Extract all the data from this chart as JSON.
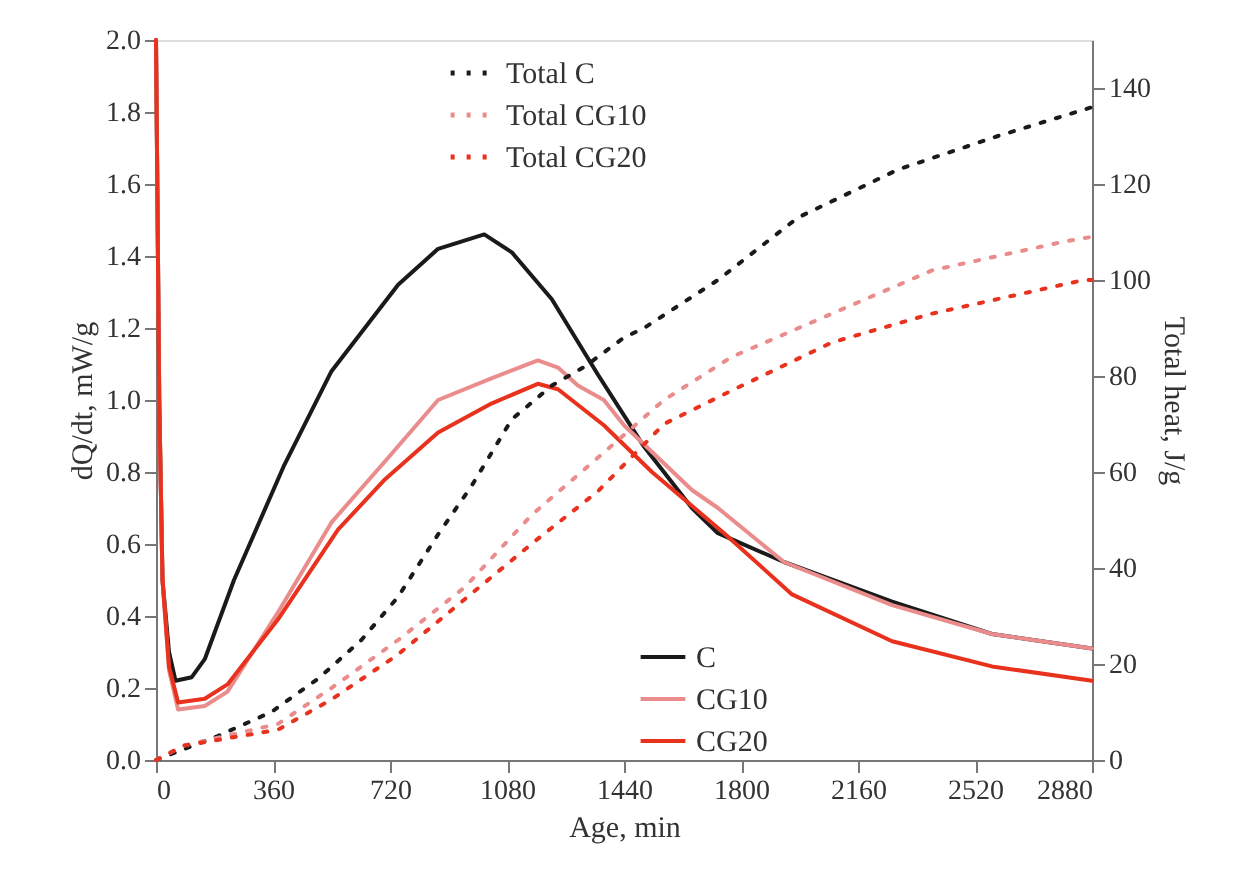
{
  "chart_data": {
    "type": "line",
    "xlabel": "Age, min",
    "ylabel": "dQ/dt, mW/g",
    "y2label": "Total heat, J/g",
    "xlim": [
      0,
      2880
    ],
    "xticks": [
      0,
      360,
      720,
      1080,
      1440,
      1800,
      2160,
      2520,
      2880
    ],
    "ylim": [
      0,
      2.0
    ],
    "yticks": [
      {
        "value": 0,
        "label": "0.0"
      },
      {
        "value": 0.2,
        "label": "0.2"
      },
      {
        "value": 0.4,
        "label": "0.4"
      },
      {
        "value": 0.6,
        "label": "0.6"
      },
      {
        "value": 0.8,
        "label": "0.8"
      },
      {
        "value": 1.0,
        "label": "1.0"
      },
      {
        "value": 1.2,
        "label": "1.2"
      },
      {
        "value": 1.4,
        "label": "1.4"
      },
      {
        "value": 1.6,
        "label": "1.6"
      },
      {
        "value": 1.8,
        "label": "1.8"
      },
      {
        "value": 2.0,
        "label": "2.0"
      }
    ],
    "y2lim": [
      0,
      150
    ],
    "y2ticks": [
      0,
      20,
      40,
      60,
      80,
      100,
      120,
      140
    ],
    "grid": false,
    "legend": "center",
    "marker": "none",
    "series": [
      {
        "name": "C",
        "color": "#1a1a1a",
        "line_style": "solid",
        "x": [
          0,
          10,
          20,
          40,
          60,
          110,
          150,
          240,
          395,
          540,
          745,
          868,
          1010,
          1095,
          1218,
          1360,
          1502,
          1649,
          1729,
          1932,
          2265,
          2572,
          2880
        ],
        "values": [
          2.0,
          1.0,
          0.5,
          0.3,
          0.22,
          0.23,
          0.28,
          0.5,
          0.82,
          1.08,
          1.32,
          1.42,
          1.46,
          1.41,
          1.28,
          1.07,
          0.87,
          0.7,
          0.63,
          0.55,
          0.44,
          0.35,
          0.31
        ]
      },
      {
        "name": "CG10",
        "color": "#eb8c8c",
        "line_style": "solid",
        "x": [
          0,
          10,
          20,
          40,
          68,
          150,
          220,
          375,
          540,
          705,
          868,
          1032,
          1175,
          1237,
          1298,
          1378,
          1440,
          1649,
          1729,
          1932,
          2265,
          2572,
          2880
        ],
        "values": [
          2.0,
          1.0,
          0.5,
          0.25,
          0.14,
          0.15,
          0.19,
          0.41,
          0.66,
          0.83,
          1.0,
          1.06,
          1.11,
          1.09,
          1.04,
          1.0,
          0.93,
          0.75,
          0.7,
          0.55,
          0.43,
          0.35,
          0.31
        ]
      },
      {
        "name": "CG20",
        "color": "#e8321e",
        "line_style": "solid",
        "x": [
          0,
          10,
          20,
          40,
          68,
          150,
          220,
          375,
          560,
          705,
          868,
          1032,
          1175,
          1237,
          1378,
          1526,
          1748,
          1957,
          2265,
          2572,
          2880
        ],
        "values": [
          2.0,
          1.0,
          0.5,
          0.26,
          0.16,
          0.17,
          0.21,
          0.39,
          0.64,
          0.78,
          0.91,
          0.99,
          1.045,
          1.03,
          0.93,
          0.8,
          0.63,
          0.46,
          0.33,
          0.26,
          0.22
        ]
      },
      {
        "name": "Total C",
        "color": "#1a1a1a",
        "line_style": "dotted",
        "axis": "y2",
        "x": [
          0,
          190,
          355,
          500,
          632,
          745,
          868,
          970,
          1095,
          1218,
          1320,
          1440,
          1502,
          1729,
          1975,
          2283,
          2591,
          2880
        ],
        "values": [
          0,
          5,
          10,
          17,
          25,
          34,
          47,
          57,
          71,
          78,
          82,
          88,
          90,
          100,
          113,
          123,
          130,
          136
        ]
      },
      {
        "name": "Total CG10",
        "color": "#eb8c8c",
        "line_style": "dotted",
        "axis": "y2",
        "x": [
          0,
          86,
          375,
          540,
          745,
          950,
          1155,
          1360,
          1563,
          1772,
          2080,
          2388,
          2794,
          2880
        ],
        "values": [
          0,
          3,
          7.5,
          15,
          25,
          36,
          51,
          63,
          75,
          84,
          93,
          102,
          108,
          109
        ]
      },
      {
        "name": "Total CG20",
        "color": "#e8321e",
        "line_style": "dotted",
        "axis": "y2",
        "x": [
          0,
          86,
          375,
          540,
          745,
          950,
          1155,
          1360,
          1563,
          1772,
          2080,
          2388,
          2855,
          2880
        ],
        "values": [
          0,
          3,
          6.3,
          12.6,
          22,
          33.5,
          45,
          56,
          70,
          77,
          87,
          93,
          100,
          100
        ]
      }
    ]
  }
}
